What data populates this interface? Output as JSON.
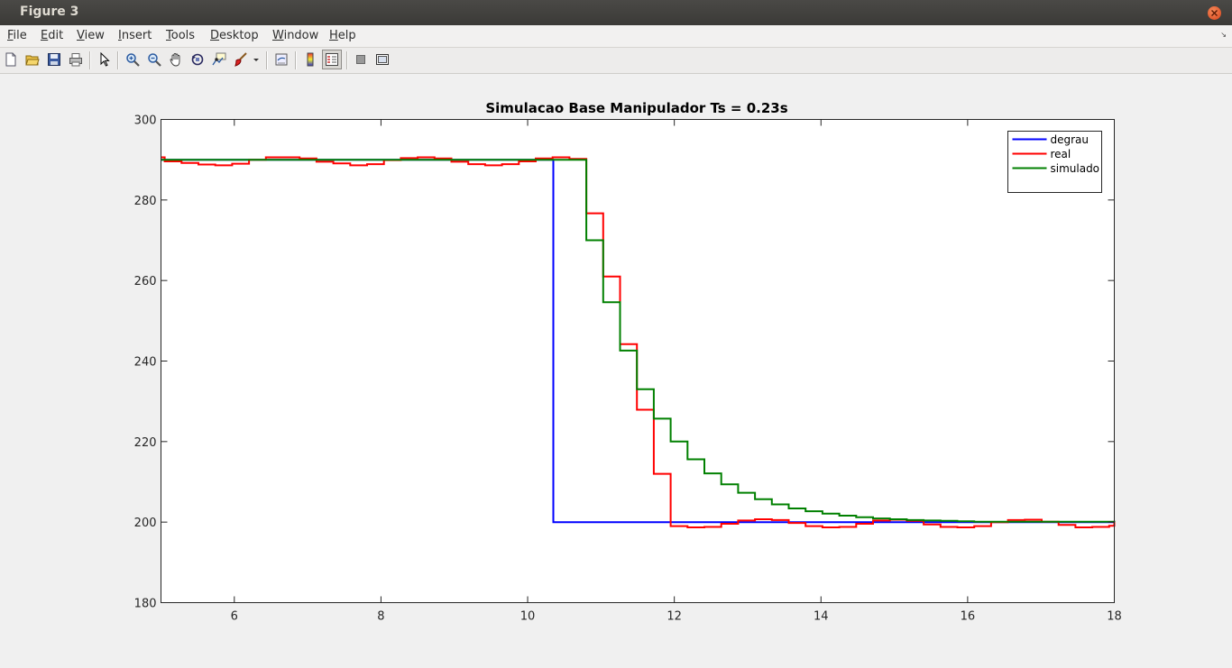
{
  "window": {
    "title": "Figure 3"
  },
  "menu": [
    {
      "label": "File",
      "underline": "F",
      "rest": "ile"
    },
    {
      "label": "Edit",
      "underline": "E",
      "rest": "dit"
    },
    {
      "label": "View",
      "underline": "V",
      "rest": "iew"
    },
    {
      "label": "Insert",
      "underline": "I",
      "rest": "nsert"
    },
    {
      "label": "Tools",
      "underline": "T",
      "rest": "ools"
    },
    {
      "label": "Desktop",
      "underline": "D",
      "rest": "esktop"
    },
    {
      "label": "Window",
      "underline": "W",
      "rest": "indow"
    },
    {
      "label": "Help",
      "underline": "H",
      "rest": "elp"
    }
  ],
  "toolbar": [
    "new-figure-icon",
    "open-file-icon",
    "save-icon",
    "print-icon",
    "edit-plot-icon",
    "zoom-in-icon",
    "zoom-out-icon",
    "pan-icon",
    "rotate-3d-icon",
    "data-cursor-icon",
    "brush-icon",
    "link-plot-icon",
    "colorbar-icon",
    "legend-icon",
    "hide-plot-tools-icon",
    "show-plot-tools-icon"
  ],
  "chart_data": {
    "type": "line",
    "title": "Simulacao Base Manipulador Ts = 0.23s",
    "xlabel": "",
    "ylabel": "",
    "xlim": [
      5,
      18
    ],
    "ylim": [
      180,
      300
    ],
    "xticks": [
      6,
      8,
      10,
      12,
      14,
      16,
      18
    ],
    "yticks": [
      180,
      200,
      220,
      240,
      260,
      280,
      300
    ],
    "legend_position": "top-right",
    "grid": false,
    "series": [
      {
        "name": "degrau",
        "color": "#0000ff",
        "step": true,
        "x": [
          5,
          10.35,
          18
        ],
        "y": [
          290,
          200,
          200
        ]
      },
      {
        "name": "real",
        "color": "#ff0000",
        "step": true,
        "x": [
          5,
          5.05,
          5.28,
          5.51,
          5.74,
          5.97,
          6.2,
          6.43,
          6.66,
          6.89,
          7.12,
          7.35,
          7.58,
          7.81,
          8.04,
          8.27,
          8.5,
          8.73,
          8.96,
          9.19,
          9.42,
          9.65,
          9.88,
          10.11,
          10.34,
          10.57,
          10.8,
          11.03,
          11.26,
          11.49,
          11.72,
          11.95,
          12.18,
          12.41,
          12.64,
          12.87,
          13.1,
          13.33,
          13.56,
          13.79,
          14.02,
          14.25,
          14.48,
          14.71,
          14.94,
          15.17,
          15.4,
          15.63,
          15.86,
          16.09,
          16.32,
          16.55,
          16.78,
          17.01,
          17.24,
          17.47,
          17.7,
          17.93,
          18
        ],
        "y": [
          290.6,
          289.6,
          289.2,
          288.8,
          288.6,
          289.0,
          290.0,
          290.6,
          290.6,
          290.3,
          289.5,
          289.1,
          288.6,
          288.9,
          289.9,
          290.4,
          290.6,
          290.3,
          289.5,
          288.9,
          288.6,
          288.9,
          289.6,
          290.3,
          290.6,
          290.2,
          276.7,
          261.0,
          244.2,
          227.9,
          212.0,
          199.0,
          198.7,
          198.8,
          199.6,
          200.4,
          200.7,
          200.5,
          199.8,
          199.0,
          198.7,
          198.8,
          199.6,
          200.4,
          200.6,
          200.3,
          199.4,
          198.8,
          198.7,
          199.0,
          200.0,
          200.5,
          200.6,
          200.1,
          199.3,
          198.7,
          198.8,
          199.1,
          200.3
        ]
      },
      {
        "name": "simulado",
        "color": "#008000",
        "step": true,
        "x": [
          5,
          10.57,
          10.8,
          11.03,
          11.26,
          11.49,
          11.72,
          11.95,
          12.18,
          12.41,
          12.64,
          12.87,
          13.1,
          13.33,
          13.56,
          13.79,
          14.02,
          14.25,
          14.48,
          14.71,
          14.94,
          15.17,
          15.4,
          15.63,
          15.86,
          16.09,
          18
        ],
        "y": [
          290,
          290,
          270.0,
          254.6,
          242.6,
          233.0,
          225.7,
          220.0,
          215.6,
          212.1,
          209.4,
          207.3,
          205.7,
          204.4,
          203.4,
          202.7,
          202.1,
          201.6,
          201.2,
          200.9,
          200.7,
          200.5,
          200.4,
          200.3,
          200.2,
          200.1,
          200.0
        ]
      }
    ]
  }
}
